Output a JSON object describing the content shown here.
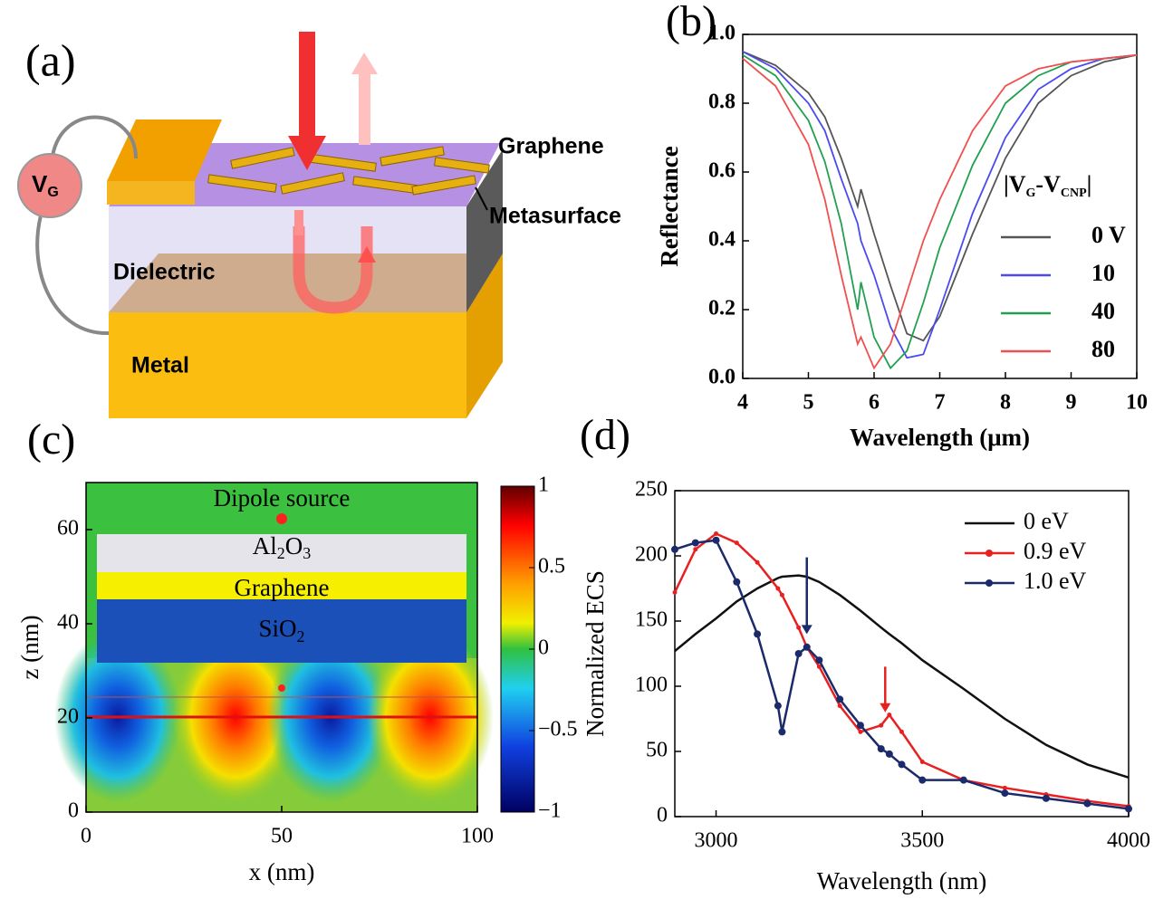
{
  "panel_a": {
    "panel_label": "(a)",
    "vg": [
      "V",
      "G"
    ],
    "graphene": "Graphene",
    "metasurface": "Metasurface",
    "dielectric": "Dielectric",
    "metal": "Metal"
  },
  "chart_data": [
    {
      "type": "line",
      "panel_label": "(b)",
      "x_label": "Wavelength (μm)",
      "y_label": "Reflectance",
      "xlim": [
        4,
        10
      ],
      "ylim": [
        0,
        1.0
      ],
      "xticks": [
        4,
        5,
        6,
        7,
        8,
        9,
        10
      ],
      "yticks": [
        {
          "value": 0,
          "label": "0.0"
        },
        0.2,
        0.4,
        0.6,
        0.8,
        {
          "value": 1.0,
          "label": "1.0"
        }
      ],
      "legend_title": [
        "|V",
        "G",
        "-V",
        "CNP",
        "|"
      ],
      "x": [
        4,
        4.5,
        5,
        5.25,
        5.5,
        5.75,
        5.8,
        6,
        6.25,
        6.5,
        6.75,
        7,
        7.5,
        8,
        8.5,
        9,
        9.5,
        10
      ],
      "series": [
        {
          "name": "0 V",
          "color": "#555555",
          "values": [
            0.95,
            0.91,
            0.83,
            0.76,
            0.64,
            0.5,
            0.55,
            0.42,
            0.27,
            0.13,
            0.11,
            0.18,
            0.42,
            0.64,
            0.8,
            0.88,
            0.92,
            0.94
          ]
        },
        {
          "name": "10",
          "color": "#4a4af0",
          "values": [
            0.95,
            0.9,
            0.8,
            0.72,
            0.58,
            0.45,
            0.4,
            0.3,
            0.15,
            0.06,
            0.07,
            0.2,
            0.48,
            0.7,
            0.84,
            0.9,
            0.93,
            0.94
          ]
        },
        {
          "name": "40",
          "color": "#22a050",
          "values": [
            0.94,
            0.88,
            0.75,
            0.63,
            0.45,
            0.2,
            0.28,
            0.12,
            0.03,
            0.08,
            0.22,
            0.38,
            0.62,
            0.8,
            0.88,
            0.92,
            0.93,
            0.94
          ]
        },
        {
          "name": "80",
          "color": "#f05050",
          "values": [
            0.93,
            0.85,
            0.68,
            0.52,
            0.3,
            0.1,
            0.12,
            0.03,
            0.1,
            0.25,
            0.4,
            0.52,
            0.72,
            0.85,
            0.9,
            0.92,
            0.93,
            0.94
          ]
        }
      ]
    },
    {
      "type": "field",
      "panel_label": "(c)",
      "x_label": "x (nm)",
      "y_label": "z (nm)",
      "xlim": [
        0,
        100
      ],
      "ylim": [
        0,
        70
      ],
      "xticks": [
        0,
        50,
        100
      ],
      "yticks": [
        0,
        20,
        40,
        60
      ],
      "clim": [
        -1,
        1
      ],
      "cticks": [
        1,
        0.5,
        0,
        {
          "value": -0.5,
          "label": "−0.5"
        },
        {
          "value": -1,
          "label": "−1"
        }
      ],
      "dipole": "Dipole source",
      "al2o3": [
        "Al",
        "2",
        "O",
        "3"
      ],
      "graphene": "Graphene",
      "sio2": [
        "SiO",
        "2"
      ]
    },
    {
      "type": "line",
      "panel_label": "(d)",
      "x_label": "Wavelength (nm)",
      "y_label": "Normalized ECS",
      "xlim": [
        2900,
        4000
      ],
      "ylim": [
        0,
        250
      ],
      "xticks": [
        3000,
        3500,
        4000
      ],
      "yticks": [
        0,
        50,
        100,
        150,
        200,
        250
      ],
      "x": [
        2900,
        2950,
        3000,
        3050,
        3100,
        3150,
        3160,
        3200,
        3220,
        3250,
        3300,
        3350,
        3400,
        3420,
        3450,
        3500,
        3600,
        3700,
        3800,
        3900,
        4000
      ],
      "series": [
        {
          "name": "0 eV",
          "color": "#111111",
          "values": [
            127,
            140,
            152,
            165,
            175,
            183,
            184,
            185,
            184,
            180,
            170,
            158,
            145,
            140,
            133,
            120,
            98,
            75,
            55,
            40,
            30
          ]
        },
        {
          "name": "0.9 eV",
          "color": "#e82020",
          "values": [
            172,
            205,
            217,
            210,
            195,
            175,
            170,
            145,
            130,
            115,
            85,
            65,
            70,
            78,
            65,
            42,
            28,
            22,
            17,
            12,
            8
          ]
        },
        {
          "name": "1.0 eV",
          "color": "#1a2a6a",
          "values": [
            205,
            210,
            212,
            180,
            140,
            85,
            65,
            125,
            130,
            120,
            90,
            70,
            52,
            48,
            40,
            28,
            28,
            18,
            14,
            10,
            6
          ]
        }
      ]
    }
  ]
}
